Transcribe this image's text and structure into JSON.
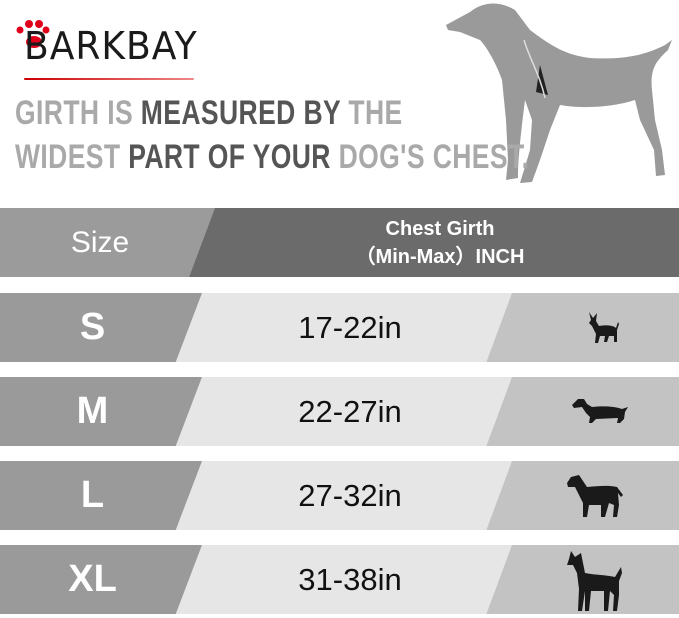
{
  "brand": {
    "logo_text": "BARKBAY",
    "accent": "#e0001a"
  },
  "headline": {
    "line1": [
      {
        "text": "GIRTH IS ",
        "tone": "light"
      },
      {
        "text": "MEASURED BY ",
        "tone": "dark"
      },
      {
        "text": "THE",
        "tone": "light"
      }
    ],
    "line2": [
      {
        "text": "WIDEST ",
        "tone": "light"
      },
      {
        "text": "PART OF YOUR ",
        "tone": "dark"
      },
      {
        "text": "DOG'S CHEST.",
        "tone": "light"
      }
    ]
  },
  "table": {
    "header": {
      "size": "Size",
      "girth_line1": "Chest Girth",
      "girth_line2": "（Min-Max）INCH"
    },
    "rows": [
      {
        "size": "S",
        "range": "17-22in",
        "icon": "chihuahua-icon"
      },
      {
        "size": "M",
        "range": "22-27in",
        "icon": "dachshund-icon"
      },
      {
        "size": "L",
        "range": "27-32in",
        "icon": "labrador-icon"
      },
      {
        "size": "XL",
        "range": "31-38in",
        "icon": "great-dane-icon"
      }
    ]
  },
  "colors": {
    "header_left": "#9b9b9b",
    "header_right": "#6b6b6b",
    "size_cell": "#9a9a9a",
    "range_cell": "#e6e6e6",
    "icon_cell": "#c3c3c3"
  }
}
